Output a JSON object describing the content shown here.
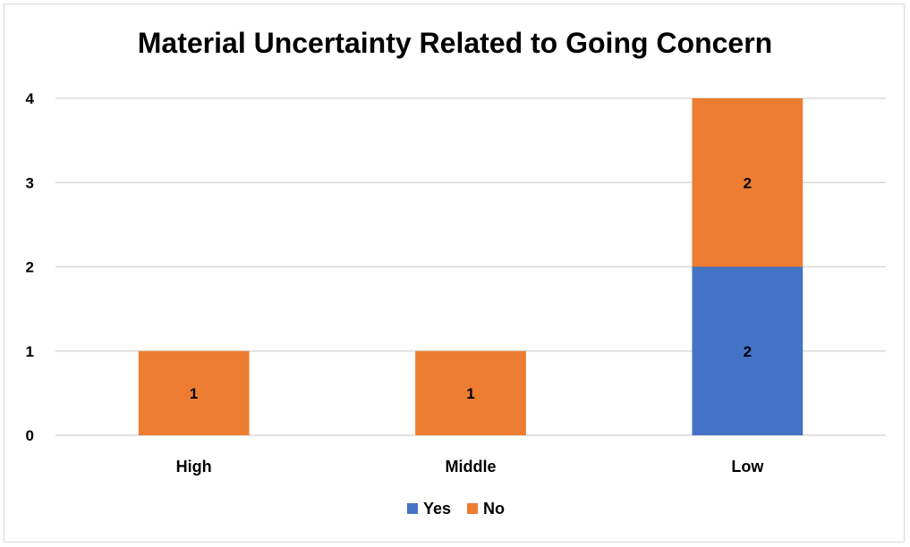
{
  "chart_data": {
    "type": "bar",
    "stacked": true,
    "title": "Material Uncertainty Related to Going Concern",
    "xlabel": "",
    "ylabel": "",
    "categories": [
      "High",
      "Middle",
      "Low"
    ],
    "series": [
      {
        "name": "Yes",
        "values": [
          0,
          0,
          2
        ],
        "color": "#4472c4"
      },
      {
        "name": "No",
        "values": [
          1,
          1,
          2
        ],
        "color": "#ed7d31"
      }
    ],
    "ylim": [
      0,
      4
    ],
    "yticks": [
      0,
      1,
      2,
      3,
      4
    ],
    "grid": true,
    "legend_position": "bottom",
    "data_labels": true
  }
}
